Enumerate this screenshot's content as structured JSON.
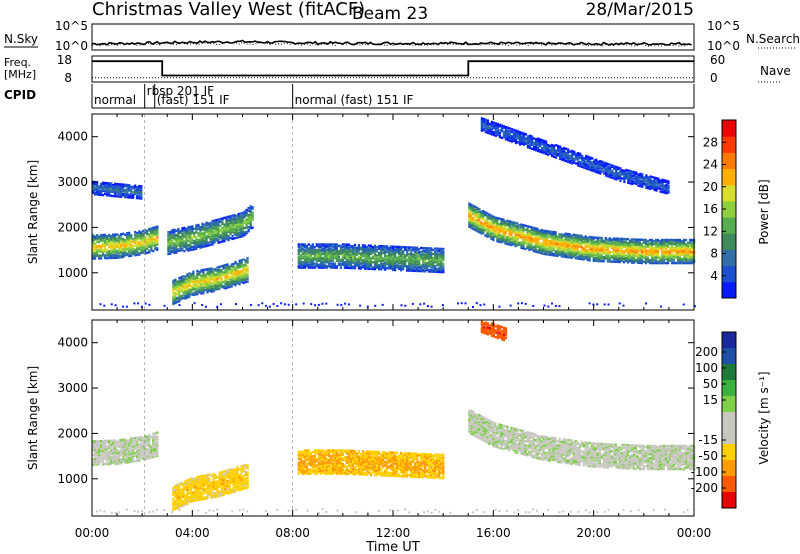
{
  "header": {
    "title": "Christmas Valley West (fitACF)",
    "beam": "Beam 23",
    "date": "28/Mar/2015"
  },
  "top_panels": {
    "nsky_label": "N.Sky",
    "nsearch_label": "N.Search",
    "nsky_ticks": [
      "10^5",
      "10^0"
    ],
    "nsearch_ticks": [
      "10^5",
      "10^0"
    ],
    "freq_label": [
      "Freq.",
      "[MHz]"
    ],
    "freq_ticks": [
      "18",
      "8"
    ],
    "nave_label": "Nave",
    "nave_ticks": [
      "60",
      "0"
    ],
    "cpid_label": "CPID",
    "cpid_segments": [
      {
        "label": "normal",
        "start": 0,
        "end": 2.1
      },
      {
        "label": "rbsp 201 IF",
        "start": 2.1,
        "end": 2.5
      },
      {
        "label": "(fast) 151 IF",
        "start": 2.5,
        "end": 8.0
      },
      {
        "label": "normal (fast) 151 IF",
        "start": 8.0,
        "end": 24
      }
    ]
  },
  "colors": {
    "power_scale": [
      "#0a1aff",
      "#1a4fd0",
      "#2f6fa8",
      "#3f8a5a",
      "#56ad4f",
      "#8dcf3f",
      "#d8dc2c",
      "#ffb000",
      "#ff7a00",
      "#ff3a00",
      "#ee0000"
    ],
    "velocity_scale": [
      "#1a2a9c",
      "#1e50a8",
      "#1f7a3a",
      "#3cb23c",
      "#7ed048",
      "#c8c8c0",
      "#c8c8c0",
      "#ffd000",
      "#ff9d00",
      "#ff5a00",
      "#e80000"
    ]
  },
  "chart_data": [
    {
      "type": "line",
      "panel": "N.Sky / N.Search",
      "x_range": [
        0,
        24
      ],
      "ylim_labels": [
        "10^0",
        "10^5"
      ],
      "series": [
        {
          "name": "N.Sky",
          "x": [
            0,
            2,
            4,
            6,
            8,
            10,
            12,
            14,
            16,
            18,
            20,
            22,
            24
          ],
          "values": [
            1.2,
            1.3,
            1.5,
            1.6,
            1.4,
            1.3,
            1.3,
            1.3,
            1.3,
            1.2,
            1.2,
            1.2,
            1.2
          ]
        },
        {
          "name": "N.Search",
          "x": [
            0,
            2,
            4,
            6,
            8,
            10,
            12,
            14,
            16,
            18,
            20,
            22,
            24
          ],
          "values": [
            1.0,
            1.1,
            1.2,
            1.3,
            1.2,
            1.1,
            1.1,
            1.1,
            1.1,
            1.1,
            1.0,
            1.0,
            1.0
          ]
        }
      ]
    },
    {
      "type": "line",
      "panel": "Freq / Nave",
      "x_range": [
        0,
        24
      ],
      "series": [
        {
          "name": "Freq. [MHz]",
          "x": [
            0,
            2.8,
            2.8,
            15.0,
            15.0,
            24
          ],
          "values": [
            16,
            16,
            10.5,
            10.5,
            16,
            16
          ],
          "ylim": [
            8,
            18
          ]
        },
        {
          "name": "Nave",
          "x": [
            0,
            24
          ],
          "values": [
            10,
            10
          ],
          "ylim": [
            0,
            60
          ]
        }
      ]
    },
    {
      "type": "heatmap",
      "panel": "Power",
      "xlabel": "",
      "ylabel": "Slant Range [km]",
      "x_range": [
        0,
        24
      ],
      "ylim": [
        180,
        4500
      ],
      "y_ticks": [
        1000,
        2000,
        3000,
        4000
      ],
      "colorbar": {
        "label": "Power [dB]",
        "ticks": [
          4,
          8,
          12,
          16,
          20,
          24,
          28
        ],
        "range": [
          0,
          32
        ]
      },
      "features": [
        {
          "desc": "main band",
          "t": [
            0,
            1,
            2,
            2.6
          ],
          "range_km": [
            1600,
            1620,
            1700,
            1800
          ],
          "value_db": 22
        },
        {
          "desc": "band",
          "t": [
            3.0,
            4.0,
            5.0,
            6.0,
            6.4
          ],
          "range_km": [
            1700,
            1800,
            1950,
            2100,
            2300
          ],
          "value_db": 16
        },
        {
          "desc": "lower band",
          "t": [
            3.2,
            4.0,
            5.0,
            6.2
          ],
          "range_km": [
            600,
            800,
            900,
            1100
          ],
          "value_db": 22
        },
        {
          "desc": "band",
          "t": [
            8.2,
            10,
            12,
            14
          ],
          "range_km": [
            1400,
            1400,
            1350,
            1300
          ],
          "value_db": 14
        },
        {
          "desc": "main band",
          "t": [
            15.0,
            16.0,
            18.0,
            20.0,
            22.0,
            24.0
          ],
          "range_km": [
            2300,
            2000,
            1700,
            1550,
            1500,
            1500
          ],
          "value_db": 24
        },
        {
          "desc": "upper echoes",
          "t": [
            0,
            1,
            2
          ],
          "range_km": [
            2900,
            2850,
            2800
          ],
          "value_db": 8
        },
        {
          "desc": "upper echoes",
          "t": [
            15.5,
            18,
            21,
            23
          ],
          "range_km": [
            4300,
            3800,
            3200,
            2900
          ],
          "value_db": 6
        }
      ]
    },
    {
      "type": "heatmap",
      "panel": "Velocity",
      "xlabel": "Time UT",
      "ylabel": "Slant Range [km]",
      "x_range": [
        0,
        24
      ],
      "x_ticks": [
        "00:00",
        "04:00",
        "08:00",
        "12:00",
        "16:00",
        "20:00",
        "00:00"
      ],
      "ylim": [
        180,
        4500
      ],
      "y_ticks": [
        1000,
        2000,
        3000,
        4000
      ],
      "colorbar": {
        "label": "Velocity [m s⁻¹]",
        "ticks": [
          200,
          100,
          50,
          15,
          -15,
          -50,
          -100,
          -200
        ]
      },
      "features": [
        {
          "desc": "ground scatter",
          "t": [
            0,
            1,
            2,
            2.6
          ],
          "range_km": [
            1600,
            1620,
            1700,
            1800
          ],
          "value": 0
        },
        {
          "desc": "band",
          "t": [
            3.2,
            4.0,
            5.0,
            6.2
          ],
          "range_km": [
            600,
            800,
            900,
            1100
          ],
          "value": -40
        },
        {
          "desc": "band",
          "t": [
            8.2,
            10,
            12,
            14
          ],
          "range_km": [
            1400,
            1400,
            1350,
            1300
          ],
          "value": -60
        },
        {
          "desc": "ground scatter",
          "t": [
            15.0,
            16.0,
            18.0,
            20.0,
            22.0,
            24.0
          ],
          "range_km": [
            2300,
            2000,
            1700,
            1550,
            1500,
            1500
          ],
          "value": 0
        },
        {
          "desc": "far echoes",
          "t": [
            15.5,
            16.5
          ],
          "range_km": [
            4400,
            4200
          ],
          "value": -200
        }
      ]
    }
  ]
}
